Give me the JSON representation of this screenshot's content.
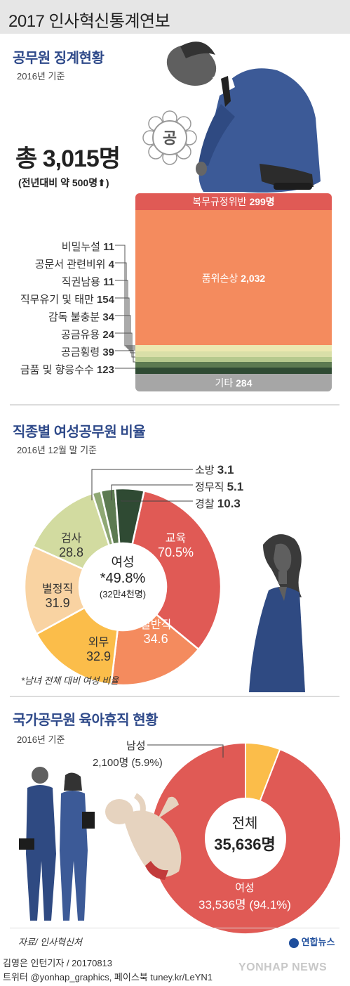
{
  "header": {
    "title": "2017 인사혁신통계연보"
  },
  "discipline": {
    "title": "공무원 징계현황",
    "basis": "2016년 기준",
    "total": "총 3,015명",
    "change": "(전년대비 약 500명",
    "seal_char": "공",
    "bar": [
      {
        "label": "복무규정위반",
        "value": "299명",
        "color": "#e05a55"
      },
      {
        "label": "품위손상",
        "value": "2,032",
        "color": "#f48b5e"
      },
      {
        "label": "기타",
        "value": "284",
        "color": "#a6a6a6"
      }
    ],
    "small": [
      {
        "label": "비밀누설",
        "value": "11"
      },
      {
        "label": "공문서 관련비위",
        "value": "4"
      },
      {
        "label": "직권남용",
        "value": "11"
      },
      {
        "label": "직무유기 및 태만",
        "value": "154"
      },
      {
        "label": "감독 불충분",
        "value": "34"
      },
      {
        "label": "공금유용",
        "value": "24"
      },
      {
        "label": "공금횡령",
        "value": "39"
      },
      {
        "label": "금품 및 향응수수",
        "value": "123"
      }
    ]
  },
  "women": {
    "title": "직종별 여성공무원 비율",
    "basis": "2016년 12월 말 기준",
    "center_label": "여성",
    "center_value": "*49.8%",
    "center_sub": "(32만4천명)",
    "note": "*남녀 전체 대비 여성 비율",
    "chart_data": {
      "type": "pie",
      "categories": [
        "교육",
        "일반직",
        "외무",
        "별정직",
        "검사",
        "소방",
        "정무직",
        "경찰"
      ],
      "values": [
        70.5,
        34.6,
        32.9,
        31.9,
        28.8,
        3.1,
        5.1,
        10.3
      ],
      "unit": "%"
    },
    "labels": {
      "edu": {
        "name": "교육",
        "value": "70.5%"
      },
      "gen": {
        "name": "일반직",
        "value": "34.6"
      },
      "foreign": {
        "name": "외무",
        "value": "32.9"
      },
      "special": {
        "name": "별정직",
        "value": "31.9"
      },
      "pros": {
        "name": "검사",
        "value": "28.8"
      },
      "fire": {
        "name": "소방",
        "value": "3.1"
      },
      "political": {
        "name": "정무직",
        "value": "5.1"
      },
      "police": {
        "name": "경찰",
        "value": "10.3"
      }
    }
  },
  "leave": {
    "title": "국가공무원 육아휴직 현황",
    "basis": "2016년 기준",
    "male_label": "남성",
    "male_value": "2,100명 (5.9%)",
    "total_label": "전체",
    "total_value": "35,636명",
    "female_label": "여성",
    "female_value": "33,536명 (94.1%)",
    "chart_data": {
      "type": "pie",
      "categories": [
        "남성",
        "여성"
      ],
      "values": [
        2100,
        33536
      ],
      "unit": "명"
    }
  },
  "footer": {
    "source": "자료/ 인사혁신처",
    "reporter": "김영은 인턴기자 / 20170813",
    "sns": "트위터 @yonhap_graphics, 페이스북 tuney.kr/LeYN1",
    "brand": "연합뉴스",
    "watermark": "YONHAP NEWS"
  }
}
